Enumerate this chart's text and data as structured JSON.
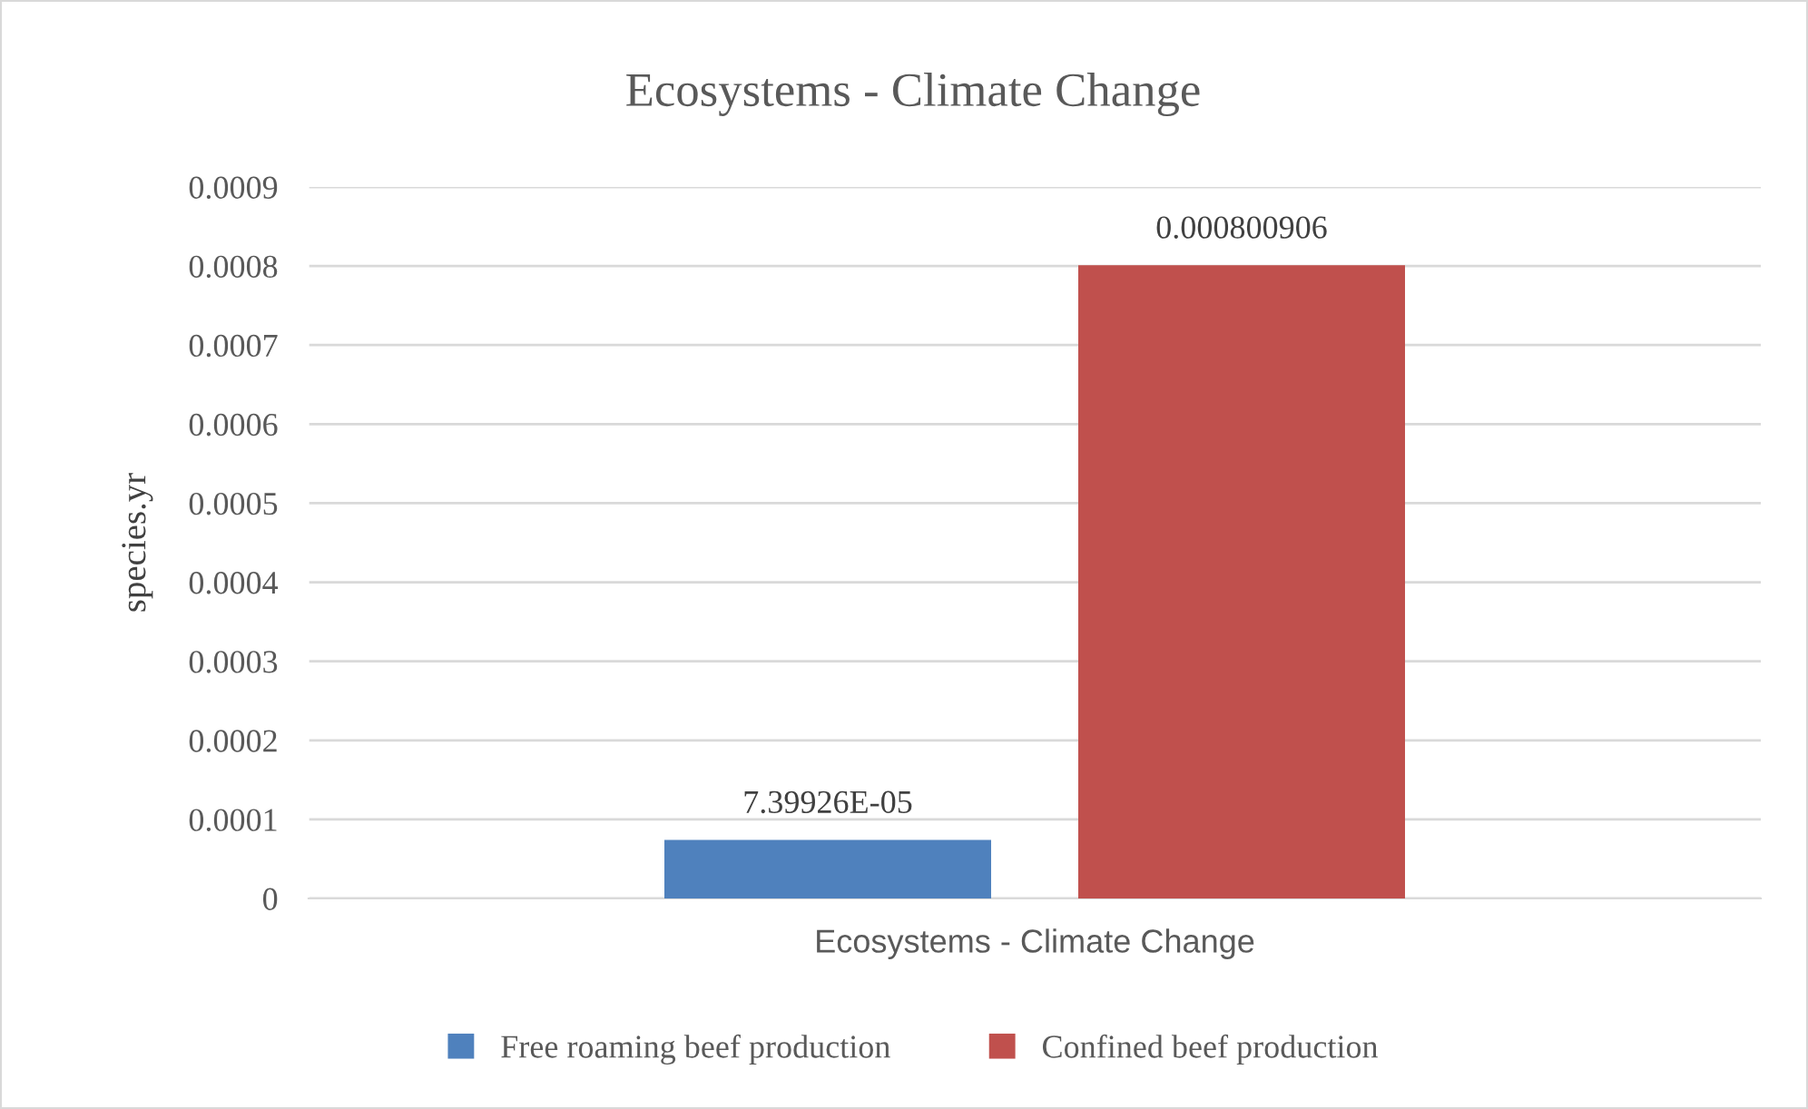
{
  "chart_data": {
    "type": "bar",
    "title": "Ecosystems - Climate Change",
    "ylabel": "species.yr",
    "categories": [
      "Ecosystems - Climate Change"
    ],
    "series": [
      {
        "name": "Free roaming beef production",
        "color": "#4f81bd",
        "values": [
          7.39926e-05
        ],
        "value_labels": [
          "7.39926E-05"
        ]
      },
      {
        "name": "Confined beef production",
        "color": "#c0504d",
        "values": [
          0.000800906
        ],
        "value_labels": [
          "0.000800906"
        ]
      }
    ],
    "ylim": [
      0,
      0.0009
    ],
    "yticks": [
      {
        "value": 0,
        "label": "0"
      },
      {
        "value": 0.0001,
        "label": "0.0001"
      },
      {
        "value": 0.0002,
        "label": "0.0002"
      },
      {
        "value": 0.0003,
        "label": "0.0003"
      },
      {
        "value": 0.0004,
        "label": "0.0004"
      },
      {
        "value": 0.0005,
        "label": "0.0005"
      },
      {
        "value": 0.0006,
        "label": "0.0006"
      },
      {
        "value": 0.0007,
        "label": "0.0007"
      },
      {
        "value": 0.0008,
        "label": "0.0008"
      },
      {
        "value": 0.0009,
        "label": "0.0009"
      }
    ],
    "grid": "y",
    "legend": "bottom"
  }
}
